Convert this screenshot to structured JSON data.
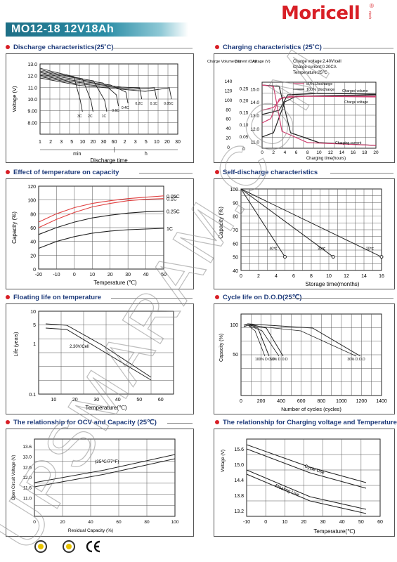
{
  "header": {
    "title": "MO12-18  12V18Ah",
    "brand": "Moricell",
    "brand_mark": "®",
    "brand_sub": "rtech"
  },
  "watermark": "UPSMARAM.COM",
  "sections": [
    "Discharge characteristics(25˚C)",
    "Charging characteristics (25˚C)",
    "Effect of temperature on capacity",
    "Self-discharge characteristics",
    "Floating life on temperature",
    "Cycle life on D.O.D(25℃)",
    "The relationship  for OCV and Capacity (25℃)",
    "The relationship for Charging voltage and Temperature"
  ],
  "chart_data": [
    {
      "id": "discharge",
      "type": "line",
      "ylabel": "Voltage (V)",
      "xlabel": "Discharge time",
      "y_ticks": [
        "13.0",
        "12.0",
        "11.0",
        "10.0",
        "9.00",
        "8.00"
      ],
      "x_ticks": [
        "1",
        "2",
        "3",
        "5",
        "10",
        "20",
        "30",
        "60",
        "2",
        "3",
        "5",
        "10",
        "20",
        "30"
      ],
      "x_units": [
        "min",
        "h"
      ],
      "series_labels": [
        "3C",
        "2C",
        "1C",
        "0.6C",
        "0.4C",
        "0.2C",
        "0.1C",
        "0.05C"
      ],
      "cutoff_voltage": [
        9.6,
        9.6,
        9.6,
        10.0,
        10.2,
        10.5,
        10.5,
        10.5
      ]
    },
    {
      "id": "charging",
      "type": "line",
      "y_axes": [
        {
          "label": "Charge Volume (%)",
          "ticks": [
            "0",
            "20",
            "40",
            "60",
            "80",
            "100",
            "120",
            "140"
          ]
        },
        {
          "label": "Current (CA)",
          "ticks": [
            "0",
            "0.05",
            "0.10",
            "0.15",
            "0.20",
            "0.25"
          ]
        },
        {
          "label": "Voltage (V)",
          "ticks": [
            "11.0",
            "12.0",
            "13.0",
            "14.0",
            "15.0"
          ]
        }
      ],
      "x_ticks": [
        "0",
        "2",
        "4",
        "6",
        "8",
        "10",
        "12",
        "14",
        "16",
        "18",
        "20"
      ],
      "xlabel": "Charging time(hours)",
      "notes": [
        "Charge voltage:2.40V/cell",
        "Charge current:0.20CA",
        "Temperature:25℃"
      ],
      "legend": [
        "50% Discharge",
        "100% Discharge"
      ],
      "curve_labels": [
        "Charged volume",
        "Charge voltage",
        "Charging current"
      ]
    },
    {
      "id": "temperature",
      "type": "line",
      "ylabel": "Capacity  (%)",
      "xlabel": "Temperature (℃)",
      "x": [
        -20,
        -10,
        0,
        10,
        20,
        30,
        40,
        50
      ],
      "y_ticks": [
        "0",
        "20",
        "40",
        "60",
        "80",
        "100",
        "120"
      ],
      "x_ticks": [
        "-20",
        "-10",
        "0",
        "10",
        "20",
        "30",
        "40",
        "50"
      ],
      "series": [
        {
          "name": "0.05C",
          "values": [
            68,
            80,
            89,
            95,
            99,
            102,
            104,
            106
          ]
        },
        {
          "name": "0.1C",
          "values": [
            60,
            72,
            82,
            90,
            95,
            99,
            101,
            102
          ]
        },
        {
          "name": "0.25C",
          "values": [
            50,
            60,
            68,
            74,
            78,
            81,
            83,
            84
          ]
        },
        {
          "name": "1C",
          "values": [
            30,
            40,
            47,
            52,
            55,
            57,
            58,
            59
          ]
        }
      ]
    },
    {
      "id": "selfdischarge",
      "type": "line",
      "ylabel": "Capacity  (%)",
      "xlabel": "Storage time(months)",
      "x_ticks": [
        "0",
        "2",
        "4",
        "6",
        "8",
        "10",
        "12",
        "14",
        "16"
      ],
      "y_ticks": [
        "40",
        "50",
        "60",
        "70",
        "80",
        "90",
        "100"
      ],
      "series": [
        {
          "name": "40℃",
          "x": [
            0,
            5
          ],
          "values": [
            100,
            50
          ]
        },
        {
          "name": "30℃",
          "x": [
            0,
            10.5
          ],
          "values": [
            100,
            50
          ]
        },
        {
          "name": "20℃",
          "x": [
            0,
            16
          ],
          "values": [
            100,
            50
          ]
        }
      ]
    },
    {
      "id": "floatlife",
      "type": "line",
      "ylabel": "Life (years)",
      "xlabel": "Temperature(℃)",
      "x_ticks": [
        "10",
        "20",
        "30",
        "40",
        "50",
        "60"
      ],
      "y_ticks": [
        "10",
        "5",
        "1",
        "0.1"
      ],
      "annotation": "2.30V/Cell"
    },
    {
      "id": "cyclelife",
      "type": "line",
      "ylabel": "Capacity (%)",
      "xlabel": "Number of cycles (cycles)",
      "x_ticks": [
        "0",
        "200",
        "400",
        "600",
        "800",
        "1000",
        "1200",
        "1400"
      ],
      "y_ticks": [
        "100",
        "50"
      ],
      "series_labels": [
        "100% D.O.D",
        "50% D.O.D",
        "30% D.O.D"
      ]
    },
    {
      "id": "ocv",
      "type": "line",
      "ylabel": "Open Circuit Voltage (V)",
      "xlabel": "Residual Capacity (%)",
      "x_ticks": [
        "0",
        "20",
        "40",
        "60",
        "80",
        "100"
      ],
      "y_ticks": [
        "13.6",
        "13.0",
        "12.6",
        "12.0",
        "11.6",
        "11.0"
      ],
      "annotation": "(25℃/77°F)"
    },
    {
      "id": "chargevoltage",
      "type": "line",
      "ylabel": "Voltage (V)",
      "xlabel": "Temperature(℃)",
      "x_ticks": [
        "-10",
        "0",
        "10",
        "20",
        "30",
        "40",
        "50",
        "60"
      ],
      "y_ticks": [
        "15.6",
        "15.0",
        "14.4",
        "13.8",
        "13.2"
      ],
      "series_labels": [
        "Cycle Use",
        "Floating Use"
      ]
    }
  ]
}
